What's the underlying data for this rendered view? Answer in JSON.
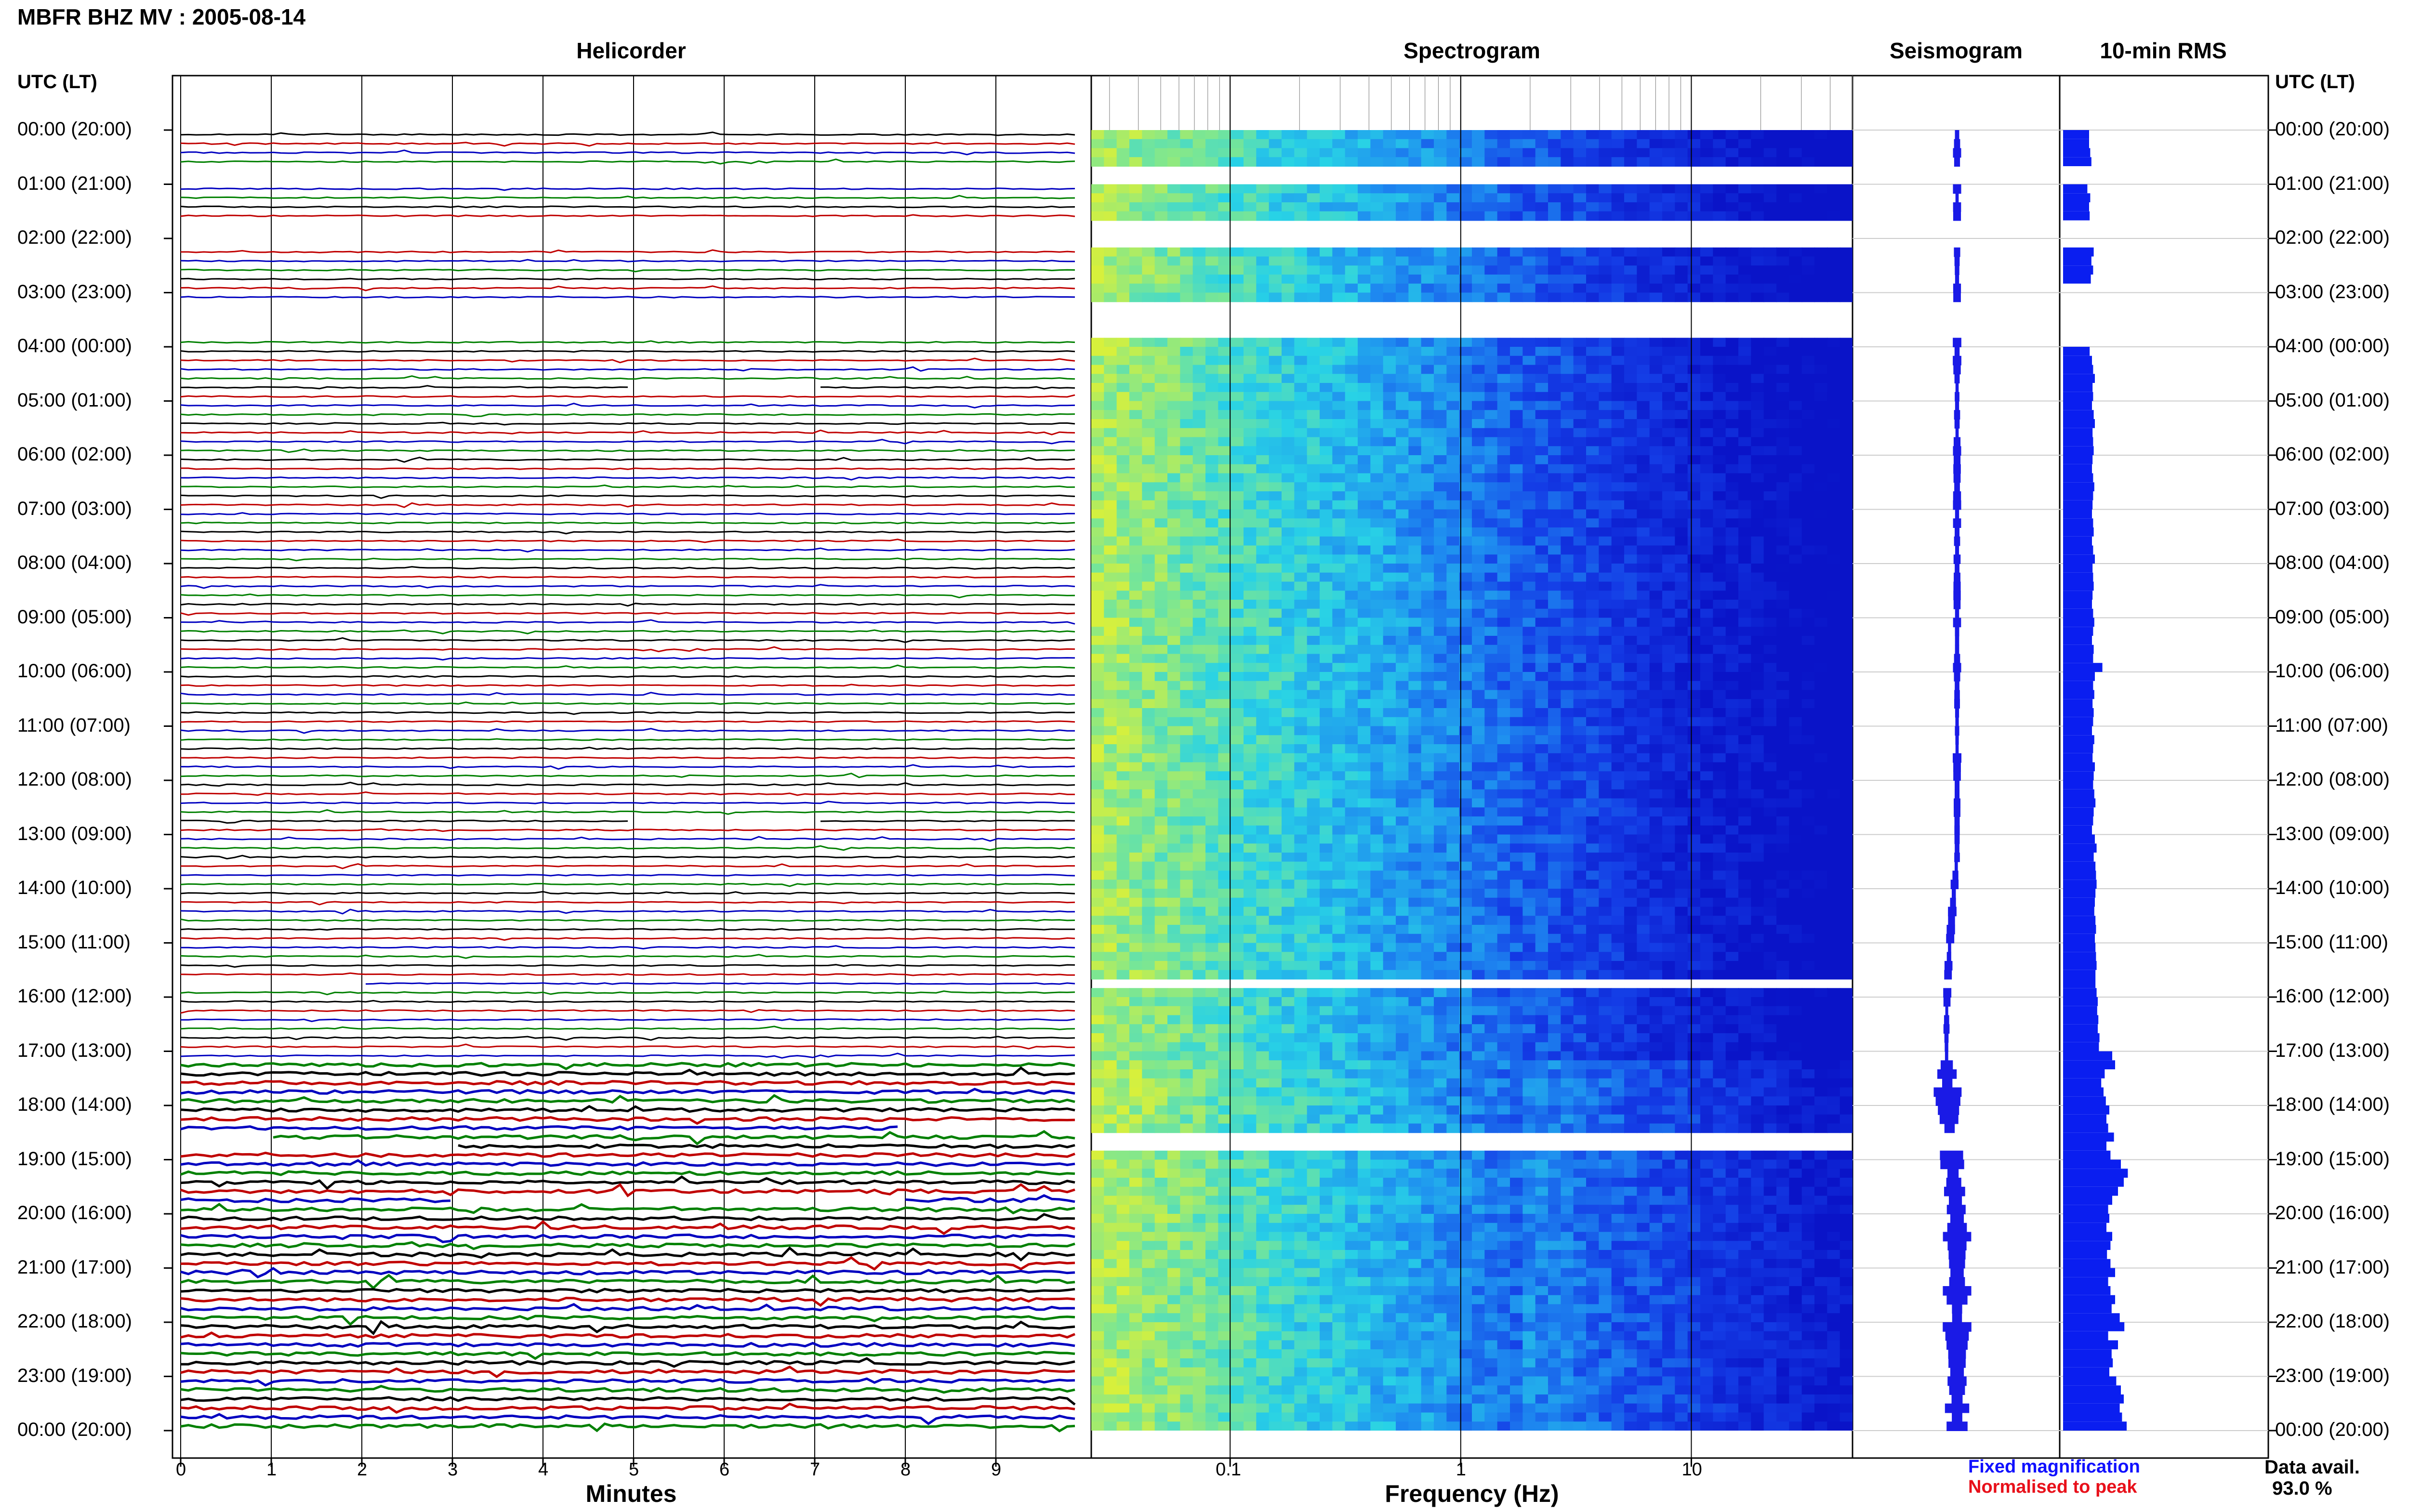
{
  "title": "MBFR BHZ MV : 2005-08-14",
  "panels": {
    "helicorder": "Helicorder",
    "spectrogram": "Spectrogram",
    "seismogram": "Seismogram",
    "rms": "10-min RMS"
  },
  "time_axis_header": "UTC (LT)",
  "time_labels": [
    "00:00 (20:00)",
    "01:00 (21:00)",
    "02:00 (22:00)",
    "03:00 (23:00)",
    "04:00 (00:00)",
    "05:00 (01:00)",
    "06:00 (02:00)",
    "07:00 (03:00)",
    "08:00 (04:00)",
    "09:00 (05:00)",
    "10:00 (06:00)",
    "11:00 (07:00)",
    "12:00 (08:00)",
    "13:00 (09:00)",
    "14:00 (10:00)",
    "15:00 (11:00)",
    "16:00 (12:00)",
    "17:00 (13:00)",
    "18:00 (14:00)",
    "19:00 (15:00)",
    "20:00 (16:00)",
    "21:00 (17:00)",
    "22:00 (18:00)",
    "23:00 (19:00)",
    "00:00 (20:00)"
  ],
  "helicorder_axis": {
    "label": "Minutes",
    "ticks": [
      "0",
      "1",
      "2",
      "3",
      "4",
      "5",
      "6",
      "7",
      "8",
      "9"
    ]
  },
  "spectrogram_axis": {
    "label": "Frequency (Hz)",
    "ticks": [
      "0.1",
      "1",
      "10"
    ],
    "scale": "log",
    "range_hz": [
      0.025,
      50
    ]
  },
  "legend": {
    "fixed": "Fixed magnification",
    "normalised": "Normalised to peak"
  },
  "data_availability": {
    "label": "Data avail.",
    "value": "93.0 %"
  },
  "trace_colors": [
    "#000000",
    "#c00000",
    "#0000c0",
    "#008000"
  ],
  "colors": {
    "rms_bar": "#0a1ef0",
    "seismogram": "#1a1ae6",
    "spectrogram_low": "#0b14c8",
    "spectrogram_high": "#d6f23c"
  },
  "chart_data": {
    "type": "heatmap",
    "description_panels": [
      "helicorder",
      "spectrogram",
      "seismogram",
      "rms"
    ],
    "y_axis": {
      "label": "UTC (LT)",
      "range": [
        "00:00",
        "24:00"
      ],
      "step_minutes": 10
    },
    "data_gaps_utc": [
      [
        "00:40",
        "01:00"
      ],
      [
        "01:40",
        "02:10"
      ],
      [
        "03:10",
        "03:50"
      ],
      [
        "04:45",
        "04:47"
      ],
      [
        "12:45",
        "12:47"
      ],
      [
        "15:40",
        "15:42"
      ],
      [
        "18:28",
        "18:31"
      ],
      [
        "18:40",
        "18:43"
      ],
      [
        "19:43",
        "19:48"
      ]
    ],
    "rms_10min": [
      0.45,
      0.45,
      0.47,
      0.49,
      null,
      null,
      0.42,
      0.47,
      0.45,
      0.46,
      null,
      null,
      null,
      0.53,
      0.49,
      0.52,
      0.48,
      null,
      null,
      null,
      null,
      null,
      null,
      null,
      0.46,
      0.5,
      0.52,
      0.55,
      0.51,
      0.52,
      0.5,
      0.53,
      0.55,
      0.51,
      0.52,
      0.53,
      0.51,
      0.5,
      0.52,
      0.54,
      0.52,
      0.51,
      0.5,
      0.52,
      0.53,
      0.5,
      0.52,
      0.55,
      0.51,
      0.52,
      0.53,
      0.51,
      0.5,
      0.52,
      0.54,
      0.52,
      0.5,
      0.53,
      0.52,
      0.68,
      0.55,
      0.52,
      0.54,
      0.51,
      0.53,
      0.52,
      0.5,
      0.54,
      0.52,
      0.51,
      0.55,
      0.53,
      0.52,
      0.54,
      0.56,
      0.53,
      0.52,
      0.5,
      0.55,
      0.58,
      0.53,
      0.56,
      0.57,
      0.58,
      0.56,
      0.55,
      0.54,
      0.56,
      0.57,
      0.55,
      0.56,
      0.57,
      0.58,
      0.56,
      0.56,
      0.58,
      0.6,
      0.59,
      0.61,
      0.6,
      0.63,
      0.62,
      0.85,
      0.9,
      0.72,
      0.66,
      0.7,
      0.74,
      0.8,
      0.75,
      0.78,
      0.88,
      0.75,
      0.82,
      1.0,
      1.12,
      1.05,
      0.95,
      0.85,
      0.78,
      0.8,
      0.75,
      0.85,
      0.82,
      0.76,
      0.82,
      0.9,
      0.78,
      0.82,
      0.9,
      0.84,
      0.98,
      1.06,
      0.78,
      0.95,
      0.84,
      0.86,
      0.8,
      0.92,
      1.0,
      1.05,
      0.98,
      1.02,
      1.1
    ]
  }
}
